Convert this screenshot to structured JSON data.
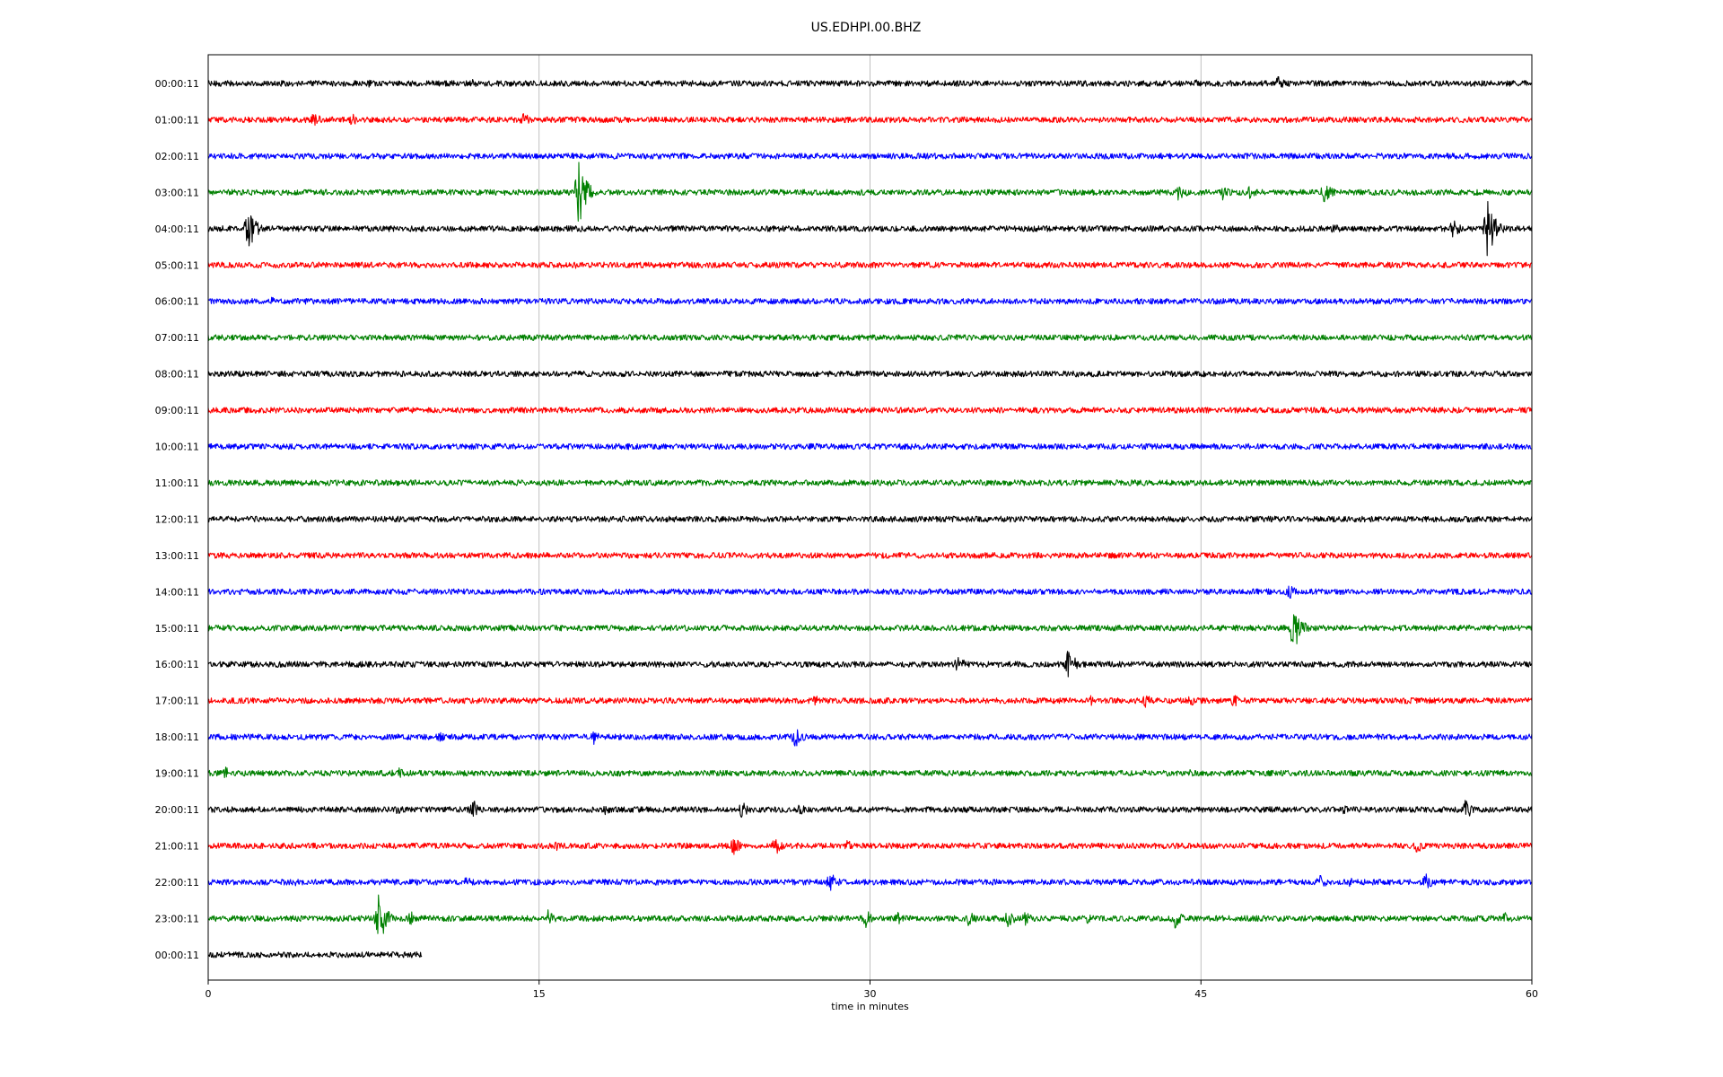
{
  "chart_data": {
    "type": "line",
    "title": "US.EDHPI.00.BHZ",
    "xlabel": "time in minutes",
    "xlim": [
      0,
      60
    ],
    "xticks": [
      0,
      15,
      30,
      45,
      60
    ],
    "grid": "vertical lines at x ticks",
    "series_colors": [
      "#000000",
      "#ff0000",
      "#0000ff",
      "#008000"
    ],
    "rows": [
      {
        "label": "00:00:11",
        "end_minute": 60,
        "events": [
          {
            "t": 7.2,
            "amp": 8
          },
          {
            "t": 12,
            "amp": 5
          },
          {
            "t": 44.8,
            "amp": 6
          },
          {
            "t": 48.5,
            "amp": 9
          }
        ]
      },
      {
        "label": "01:00:11",
        "end_minute": 60,
        "events": [
          {
            "t": 4.8,
            "amp": 9
          },
          {
            "t": 6.5,
            "amp": 8
          },
          {
            "t": 14.3,
            "amp": 9
          },
          {
            "t": 27,
            "amp": 4
          }
        ]
      },
      {
        "label": "02:00:11",
        "end_minute": 60,
        "events": [
          {
            "t": 2,
            "amp": 4
          },
          {
            "t": 18.5,
            "amp": 4
          }
        ]
      },
      {
        "label": "03:00:11",
        "end_minute": 60,
        "events": [
          {
            "t": 16.8,
            "amp": 38
          },
          {
            "t": 44,
            "amp": 11
          },
          {
            "t": 46,
            "amp": 9
          },
          {
            "t": 47.2,
            "amp": 8
          },
          {
            "t": 50.6,
            "amp": 14
          }
        ]
      },
      {
        "label": "04:00:11",
        "end_minute": 60,
        "events": [
          {
            "t": 1.8,
            "amp": 26
          },
          {
            "t": 51,
            "amp": 8
          },
          {
            "t": 56.4,
            "amp": 14
          },
          {
            "t": 58,
            "amp": 34
          }
        ]
      },
      {
        "label": "05:00:11",
        "end_minute": 60,
        "events": [
          {
            "t": 16.7,
            "amp": 5
          }
        ]
      },
      {
        "label": "06:00:11",
        "end_minute": 60,
        "events": [
          {
            "t": 2.9,
            "amp": 5
          },
          {
            "t": 25.5,
            "amp": 4
          }
        ]
      },
      {
        "label": "07:00:11",
        "end_minute": 60,
        "events": [
          {
            "t": 5.2,
            "amp": 4
          }
        ]
      },
      {
        "label": "08:00:11",
        "end_minute": 60,
        "events": []
      },
      {
        "label": "09:00:11",
        "end_minute": 60,
        "events": [
          {
            "t": 14.8,
            "amp": 4
          }
        ]
      },
      {
        "label": "10:00:11",
        "end_minute": 60,
        "events": [
          {
            "t": 19,
            "amp": 4
          }
        ]
      },
      {
        "label": "11:00:11",
        "end_minute": 60,
        "events": []
      },
      {
        "label": "12:00:11",
        "end_minute": 60,
        "events": [
          {
            "t": 31,
            "amp": 4
          }
        ]
      },
      {
        "label": "13:00:11",
        "end_minute": 60,
        "events": []
      },
      {
        "label": "14:00:11",
        "end_minute": 60,
        "events": [
          {
            "t": 49,
            "amp": 12
          }
        ]
      },
      {
        "label": "15:00:11",
        "end_minute": 60,
        "events": [
          {
            "t": 49.2,
            "amp": 30
          }
        ]
      },
      {
        "label": "16:00:11",
        "end_minute": 60,
        "events": [
          {
            "t": 34,
            "amp": 11
          },
          {
            "t": 39,
            "amp": 18
          }
        ]
      },
      {
        "label": "17:00:11",
        "end_minute": 60,
        "events": [
          {
            "t": 27.5,
            "amp": 7
          },
          {
            "t": 40,
            "amp": 7
          },
          {
            "t": 42.5,
            "amp": 8
          },
          {
            "t": 44.5,
            "amp": 8
          },
          {
            "t": 46.5,
            "amp": 10
          }
        ]
      },
      {
        "label": "18:00:11",
        "end_minute": 60,
        "events": [
          {
            "t": 10.5,
            "amp": 6
          },
          {
            "t": 17.5,
            "amp": 9
          },
          {
            "t": 26.6,
            "amp": 13
          },
          {
            "t": 28.8,
            "amp": 6
          }
        ]
      },
      {
        "label": "19:00:11",
        "end_minute": 60,
        "events": [
          {
            "t": 0.8,
            "amp": 7
          },
          {
            "t": 8.5,
            "amp": 10
          },
          {
            "t": 44.5,
            "amp": 5
          }
        ]
      },
      {
        "label": "20:00:11",
        "end_minute": 60,
        "events": [
          {
            "t": 8.6,
            "amp": 6
          },
          {
            "t": 12,
            "amp": 13
          },
          {
            "t": 18,
            "amp": 6
          },
          {
            "t": 24.2,
            "amp": 10
          },
          {
            "t": 26.8,
            "amp": 8
          },
          {
            "t": 51.5,
            "amp": 6
          },
          {
            "t": 57,
            "amp": 12
          }
        ]
      },
      {
        "label": "21:00:11",
        "end_minute": 60,
        "events": [
          {
            "t": 15.8,
            "amp": 6
          },
          {
            "t": 23.8,
            "amp": 12
          },
          {
            "t": 25.7,
            "amp": 11
          },
          {
            "t": 29,
            "amp": 7
          },
          {
            "t": 54.8,
            "amp": 9
          }
        ]
      },
      {
        "label": "22:00:11",
        "end_minute": 60,
        "events": [
          {
            "t": 4,
            "amp": 5
          },
          {
            "t": 11.7,
            "amp": 7
          },
          {
            "t": 28.2,
            "amp": 12
          },
          {
            "t": 50.4,
            "amp": 9
          },
          {
            "t": 51.8,
            "amp": 7
          },
          {
            "t": 55.2,
            "amp": 10
          }
        ]
      },
      {
        "label": "23:00:11",
        "end_minute": 60,
        "events": [
          {
            "t": 7.7,
            "amp": 34
          },
          {
            "t": 9.2,
            "amp": 9
          },
          {
            "t": 15.4,
            "amp": 10
          },
          {
            "t": 29.8,
            "amp": 11
          },
          {
            "t": 31.2,
            "amp": 9
          },
          {
            "t": 34.5,
            "amp": 10
          },
          {
            "t": 36.2,
            "amp": 12
          },
          {
            "t": 37,
            "amp": 9
          },
          {
            "t": 39.8,
            "amp": 9
          },
          {
            "t": 43.8,
            "amp": 12
          },
          {
            "t": 58.8,
            "amp": 8
          }
        ]
      },
      {
        "label": "00:00:11",
        "end_minute": 9.7,
        "events": [
          {
            "t": 3.2,
            "amp": 4
          }
        ]
      }
    ]
  }
}
